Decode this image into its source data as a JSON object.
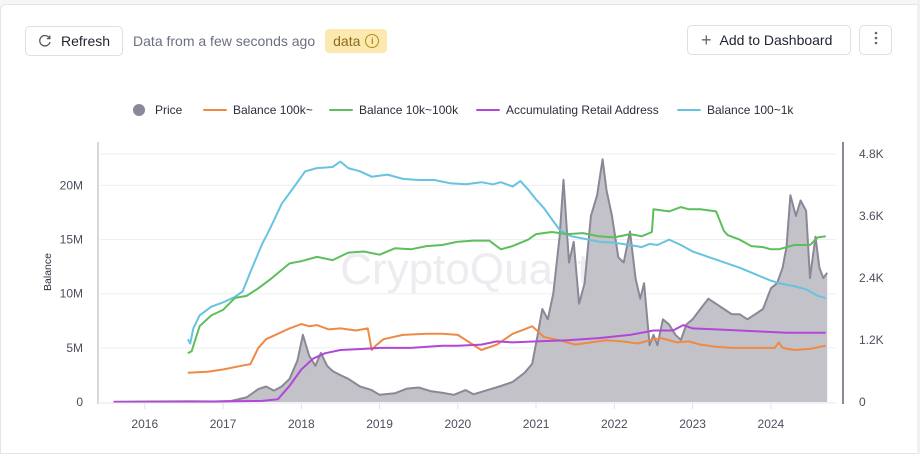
{
  "toolbar": {
    "refresh_label": "Refresh",
    "status_text": "Data from a few seconds ago",
    "badge_label": "data",
    "badge_icon": "info-icon",
    "add_label": "Add to Dashboard",
    "add_icon": "plus-icon",
    "more_icon": "more-vertical-icon",
    "refresh_icon": "refresh-icon"
  },
  "chart_data": {
    "type": "line",
    "watermark": "CryptoQuant",
    "legend": [
      {
        "name": "Price",
        "color": "#8a8896",
        "marker": "dot"
      },
      {
        "name": "Balance 100k~",
        "color": "#ee8a45",
        "marker": "line"
      },
      {
        "name": "Balance 10k~100k",
        "color": "#5cbf5c",
        "marker": "line"
      },
      {
        "name": "Accumulating Retail Address",
        "color": "#b147d6",
        "marker": "line"
      },
      {
        "name": "Balance 100~1k",
        "color": "#67c3e0",
        "marker": "line"
      }
    ],
    "legend_position": "top",
    "x_ticks": [
      "2016",
      "2017",
      "2018",
      "2019",
      "2020",
      "2021",
      "2022",
      "2023",
      "2024"
    ],
    "xlim": [
      2015.53,
      2024.73
    ],
    "y_left": {
      "label": "Balance",
      "ticks": [
        "0",
        "5M",
        "10M",
        "15M",
        "20M"
      ],
      "tick_values": [
        0,
        5000000,
        10000000,
        15000000,
        20000000
      ],
      "range": [
        0,
        22900000
      ]
    },
    "y_right": {
      "label": "",
      "ticks": [
        "0",
        "1.2K",
        "2.4K",
        "3.6K",
        "4.8K"
      ],
      "tick_values": [
        0,
        1200,
        2400,
        3600,
        4800
      ],
      "range": [
        0,
        4800
      ]
    },
    "grid": true,
    "series": [
      {
        "name": "Price",
        "axis": "right",
        "style": "area",
        "color": "#8a8896",
        "fill": "#c3c2c9",
        "x": [
          2015.6,
          2015.8,
          2016.0,
          2016.3,
          2016.6,
          2016.9,
          2017.1,
          2017.3,
          2017.45,
          2017.55,
          2017.65,
          2017.75,
          2017.85,
          2017.95,
          2018.02,
          2018.05,
          2018.1,
          2018.18,
          2018.25,
          2018.33,
          2018.4,
          2018.5,
          2018.6,
          2018.75,
          2018.9,
          2019.0,
          2019.2,
          2019.35,
          2019.5,
          2019.65,
          2019.8,
          2019.95,
          2020.1,
          2020.2,
          2020.4,
          2020.55,
          2020.7,
          2020.85,
          2020.95,
          2021.02,
          2021.08,
          2021.15,
          2021.22,
          2021.3,
          2021.35,
          2021.42,
          2021.48,
          2021.55,
          2021.62,
          2021.7,
          2021.78,
          2021.85,
          2021.9,
          2021.97,
          2022.05,
          2022.12,
          2022.2,
          2022.27,
          2022.33,
          2022.38,
          2022.45,
          2022.5,
          2022.55,
          2022.62,
          2022.7,
          2022.78,
          2022.85,
          2022.92,
          2023.0,
          2023.1,
          2023.2,
          2023.3,
          2023.4,
          2023.5,
          2023.6,
          2023.7,
          2023.8,
          2023.9,
          2024.0,
          2024.08,
          2024.15,
          2024.2,
          2024.25,
          2024.32,
          2024.38,
          2024.45,
          2024.5,
          2024.57,
          2024.62,
          2024.67,
          2024.72
        ],
        "values": [
          5,
          8,
          10,
          12,
          14,
          10,
          20,
          90,
          250,
          300,
          220,
          300,
          450,
          800,
          1300,
          1150,
          900,
          700,
          950,
          700,
          600,
          520,
          450,
          300,
          230,
          140,
          170,
          260,
          280,
          210,
          180,
          140,
          230,
          150,
          240,
          310,
          390,
          560,
          740,
          1300,
          1800,
          1600,
          2100,
          3200,
          4300,
          2700,
          3100,
          1900,
          2300,
          3600,
          4000,
          4700,
          4100,
          3600,
          2800,
          2700,
          3300,
          2400,
          2000,
          2300,
          1100,
          1300,
          1100,
          1600,
          1500,
          1300,
          1200,
          1500,
          1600,
          1800,
          2000,
          1900,
          1800,
          1700,
          1700,
          1600,
          1700,
          1800,
          2200,
          2300,
          2600,
          3000,
          4000,
          3600,
          3900,
          3700,
          2400,
          3200,
          2600,
          2400,
          2500
        ]
      },
      {
        "name": "Balance 100~1k",
        "axis": "left",
        "style": "line",
        "color": "#67c3e0",
        "x": [
          2016.55,
          2016.58,
          2016.62,
          2016.7,
          2016.85,
          2017.0,
          2017.15,
          2017.25,
          2017.35,
          2017.5,
          2017.6,
          2017.75,
          2017.9,
          2018.05,
          2018.2,
          2018.4,
          2018.5,
          2018.6,
          2018.75,
          2018.9,
          2019.1,
          2019.3,
          2019.5,
          2019.7,
          2019.9,
          2020.1,
          2020.3,
          2020.45,
          2020.55,
          2020.7,
          2020.8,
          2020.9,
          2021.0,
          2021.1,
          2021.2,
          2021.3,
          2021.45,
          2021.6,
          2021.8,
          2022.0,
          2022.2,
          2022.35,
          2022.45,
          2022.55,
          2022.7,
          2022.85,
          2023.0,
          2023.2,
          2023.4,
          2023.6,
          2023.8,
          2024.0,
          2024.15,
          2024.3,
          2024.45,
          2024.6,
          2024.7
        ],
        "values": [
          5800000,
          5400000,
          6800000,
          8000000,
          8800000,
          9200000,
          9700000,
          10200000,
          12000000,
          14600000,
          16000000,
          18300000,
          19800000,
          21300000,
          21600000,
          21700000,
          22200000,
          21600000,
          21300000,
          20800000,
          21000000,
          20600000,
          20500000,
          20500000,
          20200000,
          20100000,
          20300000,
          20100000,
          20300000,
          19900000,
          20400000,
          19600000,
          18700000,
          17900000,
          16900000,
          15900000,
          15300000,
          15100000,
          14800000,
          14700000,
          14500000,
          14300000,
          14600000,
          14500000,
          15000000,
          14500000,
          13900000,
          13400000,
          12900000,
          12400000,
          11800000,
          11200000,
          10900000,
          10700000,
          10400000,
          9800000,
          9600000
        ]
      },
      {
        "name": "Balance 10k~100k",
        "axis": "left",
        "style": "line",
        "color": "#5cbf5c",
        "x": [
          2016.55,
          2016.6,
          2016.7,
          2016.85,
          2017.0,
          2017.15,
          2017.3,
          2017.45,
          2017.6,
          2017.75,
          2017.85,
          2018.0,
          2018.2,
          2018.4,
          2018.6,
          2018.8,
          2019.0,
          2019.2,
          2019.4,
          2019.6,
          2019.8,
          2020.0,
          2020.2,
          2020.4,
          2020.55,
          2020.7,
          2020.9,
          2021.0,
          2021.2,
          2021.4,
          2021.6,
          2021.8,
          2022.0,
          2022.2,
          2022.35,
          2022.48,
          2022.5,
          2022.7,
          2022.85,
          2022.95,
          2023.1,
          2023.3,
          2023.4,
          2023.45,
          2023.6,
          2023.75,
          2023.9,
          2024.0,
          2024.1,
          2024.3,
          2024.5,
          2024.6,
          2024.7
        ],
        "values": [
          4500000,
          4700000,
          7000000,
          8000000,
          8500000,
          9600000,
          9800000,
          10500000,
          11300000,
          12200000,
          12800000,
          13000000,
          13400000,
          13100000,
          13800000,
          13900000,
          13600000,
          14200000,
          14100000,
          14400000,
          14500000,
          14800000,
          14900000,
          14900000,
          14100000,
          14400000,
          15000000,
          15500000,
          15700000,
          15500000,
          15600000,
          15300000,
          15200000,
          15500000,
          15300000,
          15700000,
          17800000,
          17600000,
          18000000,
          17800000,
          17800000,
          17600000,
          15800000,
          15400000,
          15000000,
          14400000,
          14300000,
          14100000,
          14100000,
          14500000,
          14500000,
          15200000,
          15300000
        ]
      },
      {
        "name": "Balance 100k~",
        "axis": "left",
        "style": "line",
        "color": "#ee8a45",
        "x": [
          2016.55,
          2016.8,
          2017.0,
          2017.2,
          2017.35,
          2017.45,
          2017.55,
          2017.7,
          2017.85,
          2018.0,
          2018.1,
          2018.2,
          2018.35,
          2018.5,
          2018.7,
          2018.85,
          2018.9,
          2018.95,
          2019.05,
          2019.3,
          2019.6,
          2019.8,
          2020.0,
          2020.3,
          2020.5,
          2020.7,
          2020.85,
          2020.95,
          2021.1,
          2021.3,
          2021.5,
          2021.7,
          2021.9,
          2022.1,
          2022.3,
          2022.5,
          2022.6,
          2022.8,
          2022.95,
          2023.1,
          2023.3,
          2023.5,
          2023.7,
          2023.9,
          2024.05,
          2024.1,
          2024.15,
          2024.3,
          2024.5,
          2024.7
        ],
        "values": [
          2700000,
          2800000,
          3000000,
          3300000,
          3500000,
          5000000,
          5800000,
          6300000,
          6800000,
          7200000,
          7000000,
          7100000,
          6700000,
          6800000,
          6600000,
          6800000,
          4800000,
          5200000,
          5800000,
          6200000,
          6300000,
          6300000,
          6200000,
          4800000,
          5300000,
          6300000,
          6700000,
          7000000,
          6000000,
          5700000,
          5300000,
          5500000,
          5700000,
          5600000,
          5400000,
          5800000,
          5900000,
          5500000,
          5600000,
          5300000,
          5100000,
          5000000,
          5000000,
          5000000,
          5000000,
          5500000,
          5000000,
          4800000,
          4900000,
          5200000
        ]
      },
      {
        "name": "Accumulating Retail Address",
        "axis": "left",
        "style": "line",
        "color": "#b147d6",
        "x": [
          2015.6,
          2016.5,
          2017.0,
          2017.5,
          2017.7,
          2017.85,
          2018.0,
          2018.15,
          2018.3,
          2018.5,
          2018.8,
          2019.0,
          2019.4,
          2019.8,
          2020.0,
          2020.3,
          2020.5,
          2020.7,
          2021.0,
          2021.4,
          2021.8,
          2022.2,
          2022.5,
          2022.75,
          2022.88,
          2023.0,
          2023.3,
          2023.6,
          2023.9,
          2024.2,
          2024.5,
          2024.7
        ],
        "values": [
          0,
          30000,
          60000,
          100000,
          250000,
          1500000,
          3000000,
          4000000,
          4500000,
          4800000,
          4900000,
          5000000,
          5000000,
          5200000,
          5200000,
          5300000,
          5600000,
          5500000,
          5600000,
          5700000,
          5900000,
          6200000,
          6600000,
          6600000,
          7100000,
          6800000,
          6700000,
          6600000,
          6500000,
          6400000,
          6400000,
          6400000
        ]
      }
    ]
  }
}
